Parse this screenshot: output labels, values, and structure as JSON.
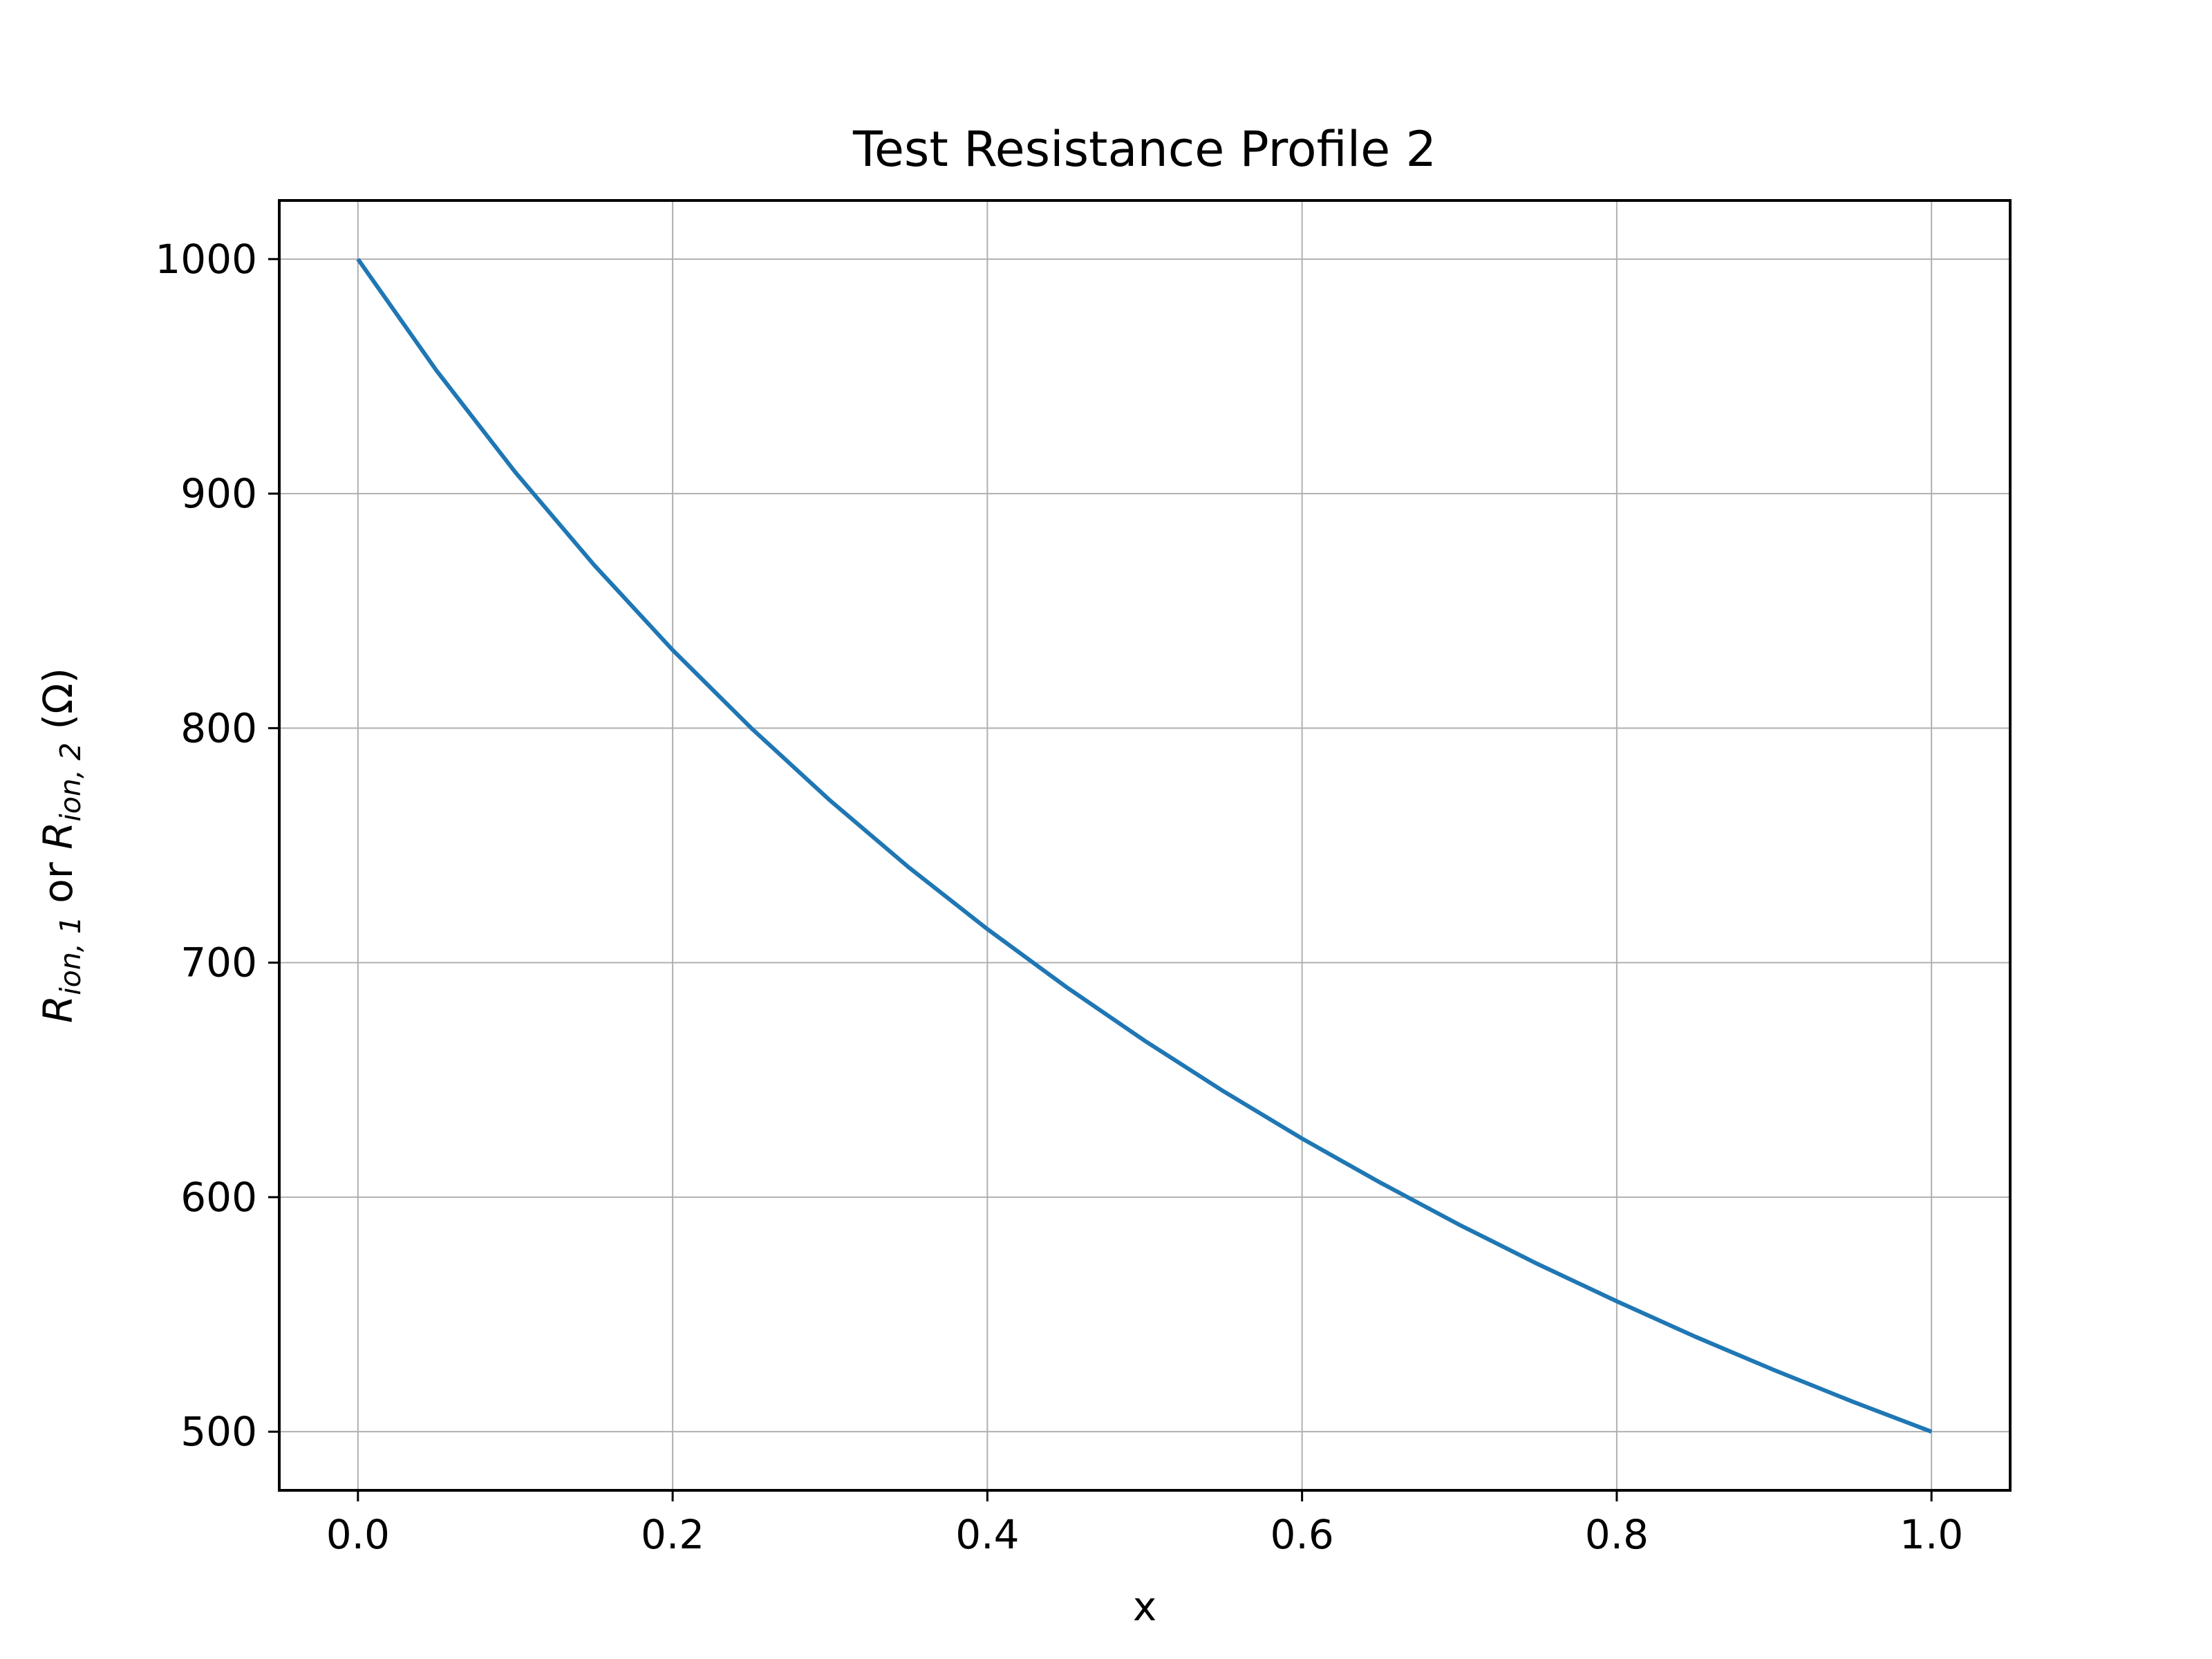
{
  "chart_data": {
    "type": "line",
    "title": "Test Resistance Profile 2",
    "xlabel": "x",
    "ylabel": {
      "parts": [
        {
          "text": "R",
          "style": "italic"
        },
        {
          "text": "ion, 1",
          "style": "italic-sub"
        },
        {
          "text": " or ",
          "style": "normal"
        },
        {
          "text": "R",
          "style": "italic"
        },
        {
          "text": "ion, 2",
          "style": "italic-sub"
        },
        {
          "text": " (Ω)",
          "style": "normal"
        }
      ]
    },
    "xlim": [
      -0.05,
      1.05
    ],
    "ylim": [
      475,
      1025
    ],
    "x_ticks": [
      0.0,
      0.2,
      0.4,
      0.6,
      0.8,
      1.0
    ],
    "x_tick_labels": [
      "0.0",
      "0.2",
      "0.4",
      "0.6",
      "0.8",
      "1.0"
    ],
    "y_ticks": [
      500,
      600,
      700,
      800,
      900,
      1000
    ],
    "y_tick_labels": [
      "500",
      "600",
      "700",
      "800",
      "900",
      "1000"
    ],
    "grid": true,
    "series": [
      {
        "color": "#1f77b4",
        "x": [
          0.0,
          0.05,
          0.1,
          0.15,
          0.2,
          0.25,
          0.3,
          0.35,
          0.4,
          0.45,
          0.5,
          0.55,
          0.6,
          0.65,
          0.7,
          0.75,
          0.8,
          0.85,
          0.9,
          0.95,
          1.0
        ],
        "y": [
          1000,
          952.4,
          909.1,
          869.6,
          833.3,
          800.0,
          769.2,
          740.7,
          714.3,
          689.7,
          666.7,
          645.2,
          625.0,
          606.1,
          588.2,
          571.4,
          555.6,
          540.5,
          526.3,
          512.8,
          500.0
        ]
      }
    ]
  }
}
